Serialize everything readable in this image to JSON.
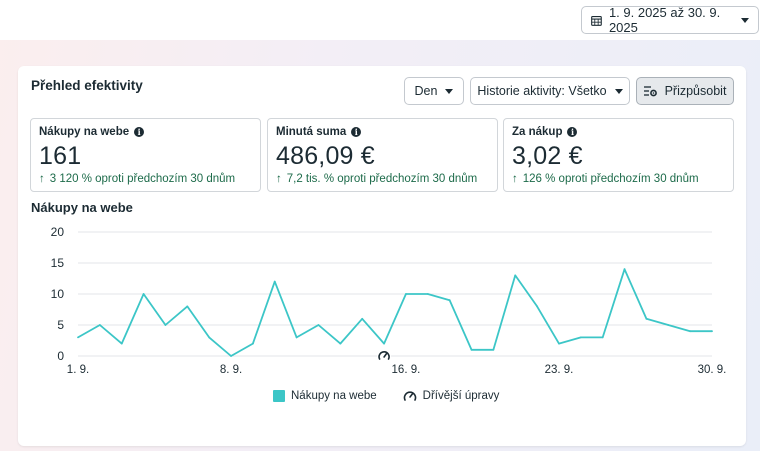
{
  "header": {
    "date_range": "1. 9. 2025 až 30. 9. 2025"
  },
  "card": {
    "title": "Přehled efektivity",
    "controls": {
      "granularity": "Den",
      "activity_history": "Historie aktivity: Všetko",
      "customize": "Přizpůsobit"
    }
  },
  "metrics": [
    {
      "label": "Nákupy na webe",
      "value": "161",
      "change": "3 120 % oproti předchozím 30 dnům"
    },
    {
      "label": "Minutá suma",
      "value": "486,09 €",
      "change": "7,2 tis. % oproti předchozím 30 dnům"
    },
    {
      "label": "Za nákup",
      "value": "3,02 €",
      "change": "126 % oproti předchozím 30 dnům"
    }
  ],
  "colors": {
    "series": "#3cc6c7",
    "positive": "#1d6b4a",
    "grid": "#e3e6e9"
  },
  "chart_data": {
    "type": "line",
    "title": "Nákupy na webe",
    "x": [
      1,
      2,
      3,
      4,
      5,
      6,
      7,
      8,
      9,
      10,
      11,
      12,
      13,
      14,
      15,
      16,
      17,
      18,
      19,
      20,
      21,
      22,
      23,
      24,
      25,
      26,
      27,
      28,
      29,
      30
    ],
    "x_tick_labels": [
      "1. 9.",
      "8. 9.",
      "16. 9.",
      "23. 9.",
      "30. 9."
    ],
    "x_tick_days": [
      1,
      8,
      16,
      23,
      30
    ],
    "y_ticks": [
      "0",
      "5",
      "10",
      "15",
      "20"
    ],
    "ylim": [
      0,
      20
    ],
    "grid": true,
    "series": [
      {
        "name": "Nákupy na webe",
        "values": [
          3,
          5,
          2,
          10,
          5,
          8,
          3,
          0,
          2,
          12,
          3,
          5,
          2,
          6,
          2,
          10,
          10,
          9,
          1,
          1,
          13,
          8,
          2,
          3,
          3,
          14,
          6,
          5,
          4,
          4
        ]
      }
    ],
    "annotations": [
      {
        "day": 15,
        "icon": "gauge-icon",
        "label": "Dřívější úpravy"
      }
    ],
    "legend_position": "bottom"
  }
}
